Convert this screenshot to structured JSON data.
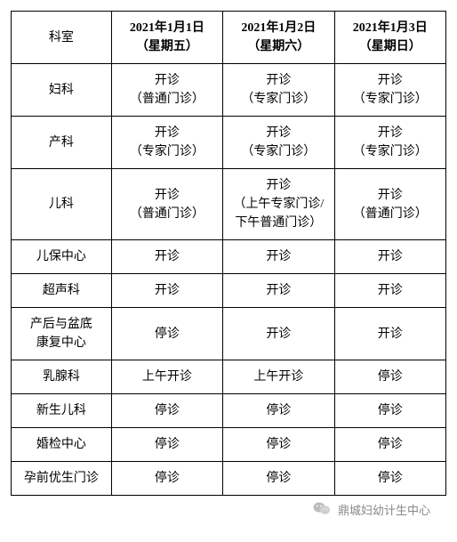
{
  "table": {
    "header": {
      "dept": "科室",
      "days": [
        {
          "date": "2021年1月1日",
          "weekday": "（星期五）"
        },
        {
          "date": "2021年1月2日",
          "weekday": "（星期六）"
        },
        {
          "date": "2021年1月3日",
          "weekday": "（星期日）"
        }
      ]
    },
    "rows": [
      {
        "dept": "妇科",
        "d1_l1": "开诊",
        "d1_l2": "（普通门诊）",
        "d2_l1": "开诊",
        "d2_l2": "（专家门诊）",
        "d3_l1": "开诊",
        "d3_l2": "（专家门诊）"
      },
      {
        "dept": "产科",
        "d1_l1": "开诊",
        "d1_l2": "（专家门诊）",
        "d2_l1": "开诊",
        "d2_l2": "（专家门诊）",
        "d3_l1": "开诊",
        "d3_l2": "（专家门诊）"
      },
      {
        "dept": "儿科",
        "d1_l1": "开诊",
        "d1_l2": "（普通门诊）",
        "d2_l1": "开诊",
        "d2_l2": "（上午专家门诊/",
        "d2_l3": "下午普通门诊）",
        "d3_l1": "开诊",
        "d3_l2": "（普通门诊）"
      },
      {
        "dept": "儿保中心",
        "d1_l1": "开诊",
        "d2_l1": "开诊",
        "d3_l1": "开诊"
      },
      {
        "dept": "超声科",
        "d1_l1": "开诊",
        "d2_l1": "开诊",
        "d3_l1": "开诊"
      },
      {
        "dept_l1": "产后与盆底",
        "dept_l2": "康复中心",
        "d1_l1": "停诊",
        "d2_l1": "开诊",
        "d3_l1": "开诊"
      },
      {
        "dept": "乳腺科",
        "d1_l1": "上午开诊",
        "d2_l1": "上午开诊",
        "d3_l1": "停诊"
      },
      {
        "dept": "新生儿科",
        "d1_l1": "停诊",
        "d2_l1": "停诊",
        "d3_l1": "停诊"
      },
      {
        "dept": "婚检中心",
        "d1_l1": "停诊",
        "d2_l1": "停诊",
        "d3_l1": "停诊"
      },
      {
        "dept": "孕前优生门诊",
        "d1_l1": "停诊",
        "d2_l1": "停诊",
        "d3_l1": "停诊"
      }
    ]
  },
  "footer": {
    "source": "鼎城妇幼计生中心"
  },
  "style": {
    "border_color": "#000000",
    "text_color": "#000000",
    "background": "#ffffff",
    "font_size": 14,
    "footer_color": "#888888"
  }
}
